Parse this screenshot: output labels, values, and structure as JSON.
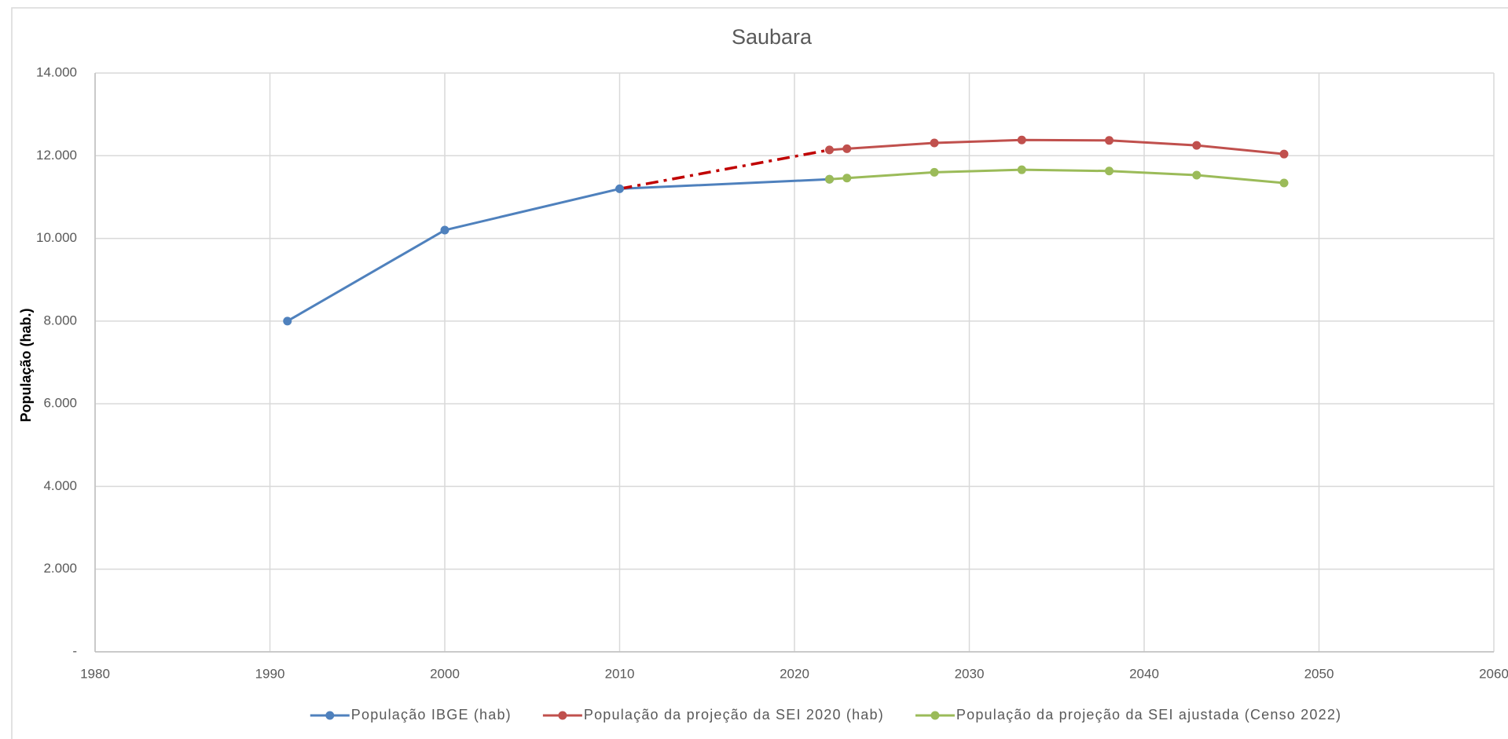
{
  "chart_data": {
    "type": "line",
    "title": "Saubara",
    "y_label": "População (hab.)",
    "xlim": [
      1980,
      2060
    ],
    "xticks": [
      1980,
      1990,
      2000,
      2010,
      2020,
      2030,
      2040,
      2050,
      2060
    ],
    "ylim": [
      0,
      14000
    ],
    "yticks": [
      {
        "value": 0,
        "label": "-"
      },
      {
        "value": 2000,
        "label": "2.000"
      },
      {
        "value": 4000,
        "label": "4.000"
      },
      {
        "value": 6000,
        "label": "6.000"
      },
      {
        "value": 8000,
        "label": "8.000"
      },
      {
        "value": 10000,
        "label": "10.000"
      },
      {
        "value": 12000,
        "label": "12.000"
      },
      {
        "value": 14000,
        "label": "14.000"
      }
    ],
    "grid": true,
    "legend": "bottom",
    "series": [
      {
        "name": "População IBGE (hab)",
        "color": "#4f81bd",
        "marker": true,
        "x": [
          1991,
          2000,
          2010,
          2022
        ],
        "values": [
          8000,
          10200,
          11200,
          11430
        ]
      },
      {
        "color": "#c00000",
        "marker": false,
        "dash": "dashdot",
        "x": [
          2010,
          2022
        ],
        "values": [
          11200,
          12140
        ]
      },
      {
        "name": "População da projeção da SEI 2020 (hab)",
        "color": "#c0504d",
        "marker": true,
        "x": [
          2022,
          2023,
          2028,
          2033,
          2038,
          2043,
          2048
        ],
        "values": [
          12140,
          12170,
          12310,
          12380,
          12370,
          12250,
          12040
        ]
      },
      {
        "name": "População da projeção da SEI ajustada (Censo 2022)",
        "color": "#9bbb59",
        "marker": true,
        "x": [
          2022,
          2023,
          2028,
          2033,
          2038,
          2043,
          2048
        ],
        "values": [
          11430,
          11460,
          11600,
          11660,
          11630,
          11530,
          11340
        ]
      }
    ]
  }
}
